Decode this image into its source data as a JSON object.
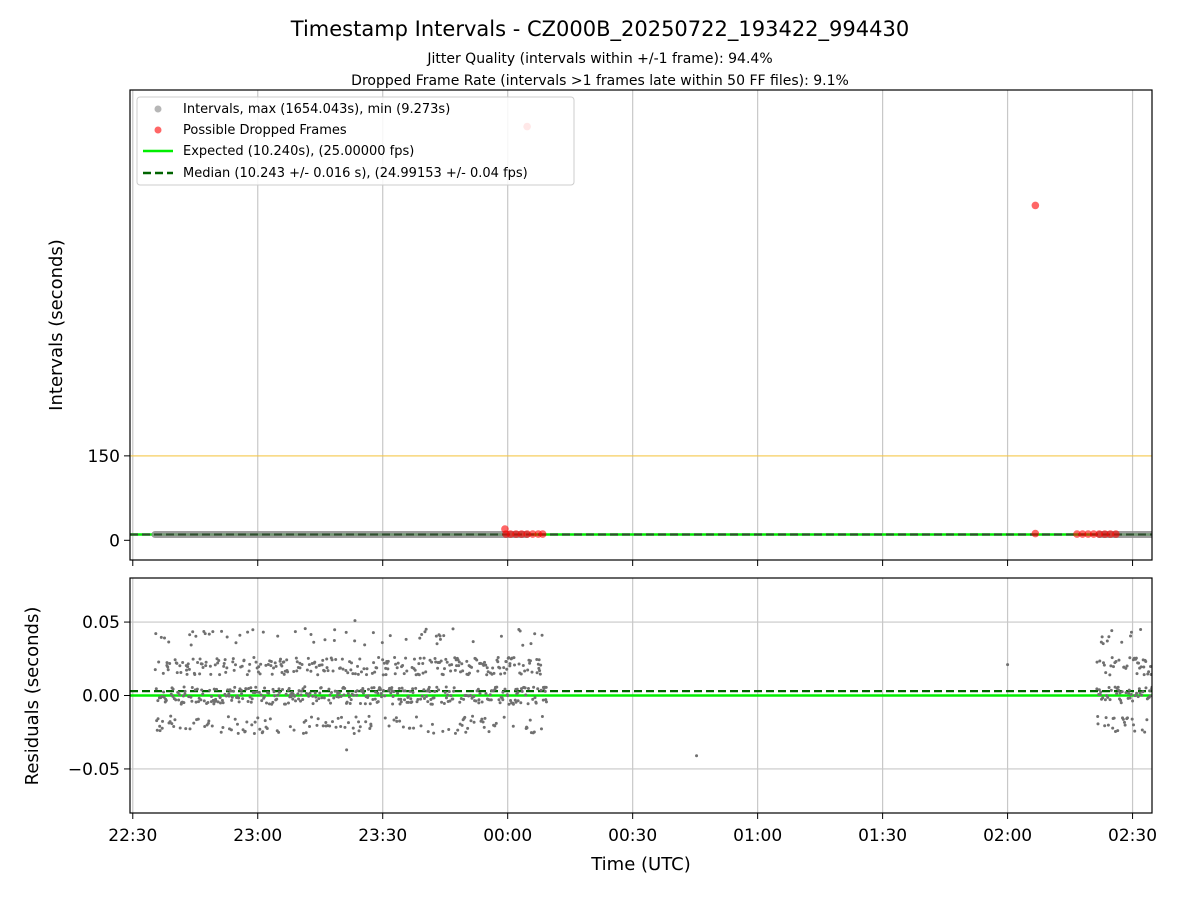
{
  "figure": {
    "title": "Timestamp Intervals - CZ000B_20250722_193422_994430",
    "subtitle_1": "Jitter Quality (intervals within +/-1 frame): 94.4%",
    "subtitle_2": "Dropped Frame Rate (intervals >1 frames late within 50 FF files): 9.1%"
  },
  "chart_data": [
    {
      "type": "scatter",
      "ylabel": "Intervals (seconds)",
      "xlim_minutes": [
        -5,
        1835
      ],
      "ylim": [
        -35,
        800
      ],
      "y_tick_labels": [
        "150",
        "0"
      ],
      "y_ticks": [
        150,
        0
      ],
      "grid": "vertical",
      "legend_position": "top-left",
      "legend": [
        {
          "label": "Intervals, max (1654.043s), min (9.273s)",
          "marker": "circle",
          "color": "#9e9e9e"
        },
        {
          "label": "Possible Dropped Frames",
          "marker": "circle",
          "color": "#ff0000"
        },
        {
          "label": "Expected (10.240s), (25.00000 fps)",
          "line": "solid",
          "color": "#00ee00"
        },
        {
          "label": "Median (10.243 +/- 0.016 s), (24.99153 +/- 0.04 fps)",
          "line": "dashed",
          "color": "#006400"
        }
      ],
      "reference_lines": [
        {
          "name": "threshold",
          "y": 150,
          "color": "#f5c542"
        },
        {
          "name": "expected",
          "y": 10.24,
          "color": "#00ee00"
        },
        {
          "name": "median",
          "y": 10.243,
          "color": "#006400"
        }
      ],
      "interval_segments_minutes": [
        [
          40,
          710
        ],
        [
          1740,
          1835
        ]
      ],
      "interval_value": 10.24,
      "dropped_frame_points": [
        {
          "t_min": 670,
          "y": 20
        },
        {
          "t_min": 672,
          "y": 11
        },
        {
          "t_min": 680,
          "y": 11
        },
        {
          "t_min": 690,
          "y": 11
        },
        {
          "t_min": 700,
          "y": 11
        },
        {
          "t_min": 710,
          "y": 11
        },
        {
          "t_min": 720,
          "y": 11
        },
        {
          "t_min": 730,
          "y": 11
        },
        {
          "t_min": 738,
          "y": 11
        },
        {
          "t_min": 710,
          "y": 735
        },
        {
          "t_min": 1625,
          "y": 595
        },
        {
          "t_min": 1625,
          "y": 12
        },
        {
          "t_min": 1700,
          "y": 11
        },
        {
          "t_min": 1710,
          "y": 11
        },
        {
          "t_min": 1720,
          "y": 11
        },
        {
          "t_min": 1730,
          "y": 11
        },
        {
          "t_min": 1740,
          "y": 11
        },
        {
          "t_min": 1750,
          "y": 11
        },
        {
          "t_min": 1760,
          "y": 11
        },
        {
          "t_min": 1770,
          "y": 11
        }
      ]
    },
    {
      "type": "scatter",
      "xlabel": "Time (UTC)",
      "ylabel": "Residuals (seconds)",
      "xlim_minutes": [
        -5,
        1835
      ],
      "ylim": [
        -0.08,
        0.08
      ],
      "y_ticks": [
        0.05,
        0.0,
        -0.05
      ],
      "y_tick_labels": [
        "0.05",
        "0.00",
        "−0.05"
      ],
      "x_ticks_minutes": [
        0,
        225,
        450,
        675,
        900,
        1125,
        1350,
        1575,
        1800
      ],
      "x_tick_labels": [
        "22:30",
        "23:00",
        "23:30",
        "00:00",
        "00:30",
        "01:00",
        "01:30",
        "02:00",
        "02:30"
      ],
      "grid": "both",
      "reference_lines": [
        {
          "name": "expected",
          "y": 0.0,
          "color": "#00ee00"
        },
        {
          "name": "median",
          "y": 0.003,
          "color": "#006400"
        }
      ],
      "residual_segments_minutes": [
        [
          40,
          745
        ],
        [
          1735,
          1835
        ]
      ],
      "residual_levels": [
        0.0,
        0.02,
        -0.02,
        0.04
      ],
      "residual_level_weights": [
        0.45,
        0.33,
        0.15,
        0.07
      ],
      "residual_spread": 0.006,
      "isolated_residual_points": [
        {
          "t_min": 1575,
          "y": 0.021
        },
        {
          "t_min": 385,
          "y": -0.037
        },
        {
          "t_min": 1015,
          "y": -0.041
        },
        {
          "t_min": 400,
          "y": 0.051
        }
      ]
    }
  ]
}
